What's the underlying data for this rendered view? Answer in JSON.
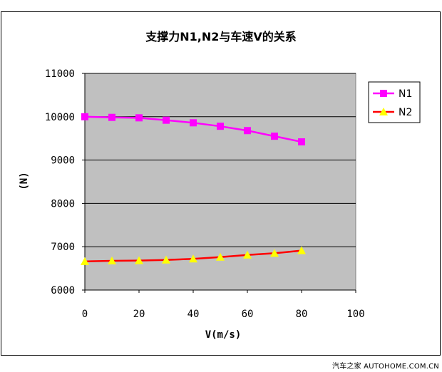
{
  "chart_data": {
    "type": "line",
    "title": "支撑力N1,N2与车速V的关系",
    "xlabel": "V(m/s)",
    "ylabel": "(N)",
    "xlim": [
      0,
      100
    ],
    "ylim": [
      6000,
      11000
    ],
    "x_ticks": [
      "0",
      "20",
      "40",
      "60",
      "80",
      "100"
    ],
    "y_ticks": [
      "6000",
      "7000",
      "8000",
      "9000",
      "10000",
      "11000"
    ],
    "grid": true,
    "legend_position": "right",
    "plot_bg": "#c0c0c0",
    "series": [
      {
        "name": "N1",
        "color": "#ff00ff",
        "marker": "square",
        "x": [
          0,
          10,
          20,
          30,
          40,
          50,
          60,
          70,
          80
        ],
        "y": [
          10000,
          9985,
          9975,
          9920,
          9860,
          9780,
          9680,
          9550,
          9420
        ]
      },
      {
        "name": "N2",
        "color": "#ff0000",
        "marker_color": "#ffff00",
        "marker": "triangle",
        "x": [
          0,
          10,
          20,
          30,
          40,
          50,
          60,
          70,
          80
        ],
        "y": [
          6660,
          6675,
          6680,
          6695,
          6720,
          6760,
          6810,
          6850,
          6910
        ]
      }
    ]
  },
  "watermark": "汽车之家 AUTOHOME.COM.CN"
}
